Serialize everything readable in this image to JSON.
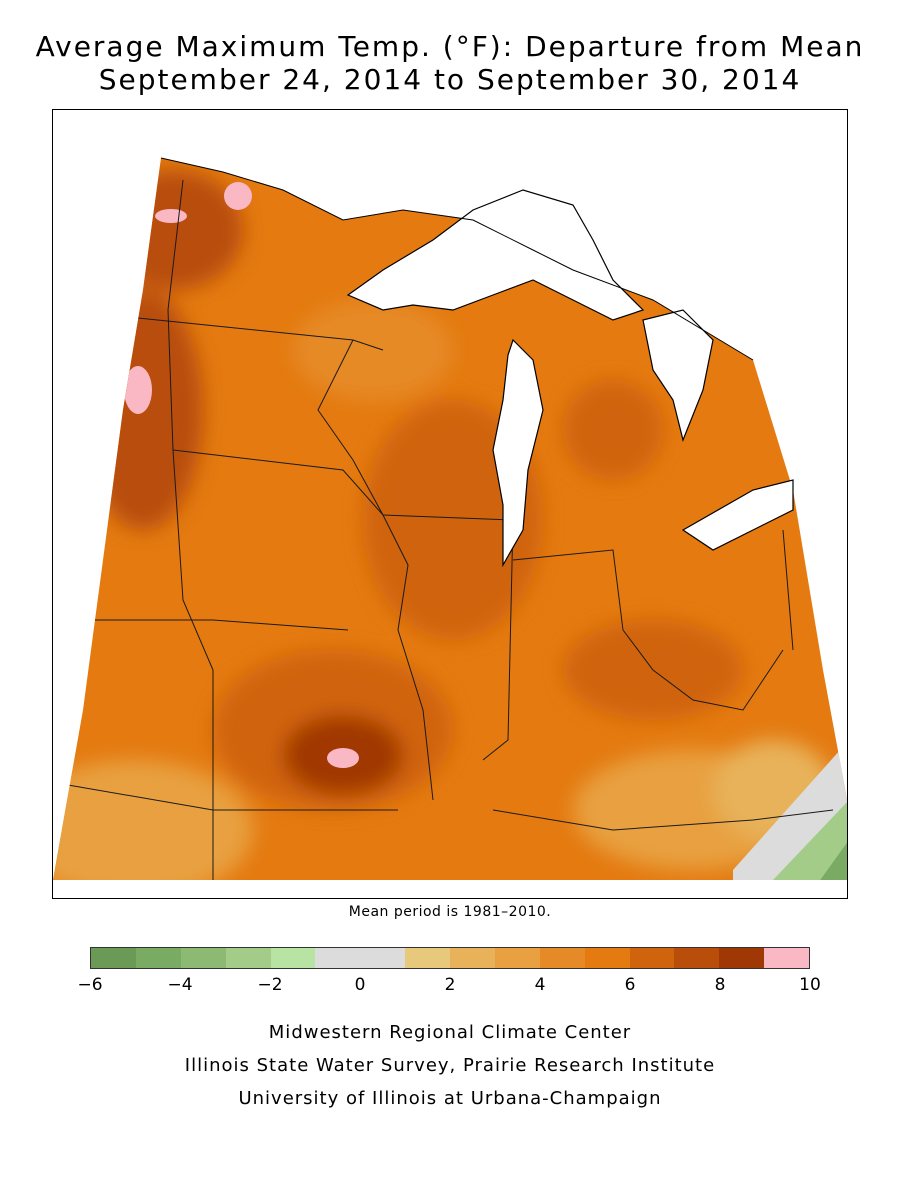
{
  "header": {
    "title_line_1": "Average Maximum Temp. (°F): Departure from Mean",
    "title_line_2": "September 24, 2014 to September 30, 2014"
  },
  "note": "Mean period is 1981–2010.",
  "legend": {
    "colors": [
      "#6a9a55",
      "#7aab62",
      "#8cba72",
      "#a2cc88",
      "#b7e3a3",
      "#dcdcdc",
      "#dcdcdc",
      "#e8c87a",
      "#e8b25a",
      "#e8a040",
      "#e68a28",
      "#e47a10",
      "#d0640c",
      "#b84e0a",
      "#a03806",
      "#f9b8c4"
    ],
    "ticks": [
      {
        "value": -6,
        "label": "−6"
      },
      {
        "value": -4,
        "label": "−4"
      },
      {
        "value": -2,
        "label": "−2"
      },
      {
        "value": 0,
        "label": "0"
      },
      {
        "value": 2,
        "label": "2"
      },
      {
        "value": 4,
        "label": "4"
      },
      {
        "value": 6,
        "label": "6"
      },
      {
        "value": 8,
        "label": "8"
      },
      {
        "value": 10,
        "label": "10"
      }
    ],
    "min": -6,
    "max": 10
  },
  "credits": {
    "line_1": "Midwestern Regional Climate Center",
    "line_2": "Illinois State Water Survey, Prairie Research Institute",
    "line_3": "University of Illinois at Urbana-Champaign"
  },
  "colors": {
    "base": "#e47a10",
    "warm": "#d0640c",
    "hot": "#b84e0a",
    "hottest": "#a03806",
    "extreme": "#f9b8c4",
    "mild": "#e68a28",
    "cool": "#e8a040",
    "cooler": "#e8b25a",
    "neutral": "#dcdcdc",
    "cold": "#7aab62"
  }
}
